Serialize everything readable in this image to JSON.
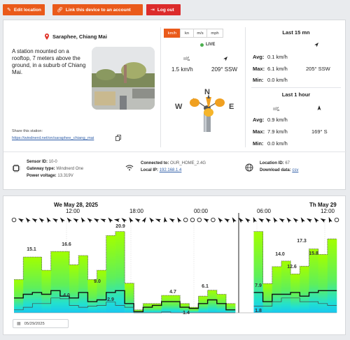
{
  "topbar": {
    "edit_location": "Edit location",
    "link_device": "Link this device to an account",
    "logout": "Log out"
  },
  "station": {
    "name": "Saraphee, Chiang Mai",
    "description": "A station mounted on a rooftop, 7 meters above the ground, in a suburb of Chiang Mai.",
    "share_label": "Share this station:",
    "share_url": "https://windnerd.net/on/saraphee_chiang_mai"
  },
  "units": [
    "km/h",
    "kn",
    "m/s",
    "mph"
  ],
  "units_active": "km/h",
  "live": {
    "label": "LIVE",
    "speed": "1.5 km/h",
    "direction": "209° SSW"
  },
  "compass": {
    "n": "N",
    "w": "W",
    "e": "E"
  },
  "stats": {
    "last15": {
      "title": "Last 15 mn",
      "avg_label": "Avg:",
      "avg": "0.1 km/h",
      "max_label": "Max:",
      "max": "6.1 km/h",
      "max_dir": "205° SSW",
      "min_label": "Min:",
      "min": "0.0 km/h"
    },
    "last1h": {
      "title": "Last 1 hour",
      "avg_label": "Avg:",
      "avg": "0.9 km/h",
      "max_label": "Max:",
      "max": "7.9 km/h",
      "max_dir": "169° S",
      "min_label": "Min:",
      "min": "0.0 km/h"
    }
  },
  "footer": {
    "sensor_id_label": "Sensor ID:",
    "sensor_id": "10-0",
    "gateway_label": "Gateway type:",
    "gateway": "Windnerd One",
    "power_label": "Power voltage:",
    "power": "13.319V",
    "connected_label": "Connected to:",
    "connected": "OUR_HOME_2.4G",
    "local_ip_label": "Local IP:",
    "local_ip": "192.168.1.4",
    "location_id_label": "Location ID:",
    "location_id": "67",
    "download_label": "Download data:",
    "download": "csv"
  },
  "chart_data": {
    "type": "area",
    "date_labels": [
      "We May 28, 2025",
      "Th May 29"
    ],
    "time_labels": [
      "12:00",
      "18:00",
      "00:00",
      "06:00",
      "12:00"
    ],
    "series": [
      {
        "name": "max",
        "values": [
          9.0,
          15.1,
          15.1,
          11.5,
          16.6,
          16.6,
          13.0,
          15.5,
          9.0,
          11.5,
          20.9,
          22.0,
          8.0,
          0.8,
          2.5,
          2.5,
          4.7,
          4.7,
          2.5,
          1.5,
          4.5,
          6.1,
          5.0,
          2.5,
          0.3,
          0.2,
          22.0,
          7.9,
          12.5,
          14.0,
          10.5,
          12.6,
          17.3,
          15.8,
          20.0
        ]
      },
      {
        "name": "avg",
        "values": [
          4.0,
          5.0,
          5.5,
          5.0,
          6.0,
          4.5,
          4.0,
          5.5,
          3.0,
          3.5,
          5.5,
          6.0,
          2.5,
          0.3,
          1.5,
          2.0,
          3.0,
          3.0,
          1.5,
          1.2,
          2.5,
          3.5,
          2.5,
          0.8,
          0.2,
          0.2,
          5.5,
          3.0,
          5.0,
          5.0,
          5.5,
          4.5,
          5.5,
          6.0,
          6.0
        ]
      },
      {
        "name": "min",
        "values": [
          0.8,
          1.5,
          2.5,
          2.5,
          4.0,
          3.8,
          2.0,
          1.5,
          1.8,
          2.0,
          2.9,
          2.0,
          1.5,
          0.0,
          0.0,
          0.0,
          0.2,
          0.0,
          0.0,
          0.0,
          0.0,
          0.0,
          0.0,
          0.0,
          0.0,
          0.0,
          1.8,
          1.8,
          3.0,
          4.0,
          4.0,
          3.0,
          3.0,
          2.5,
          2.0
        ]
      }
    ],
    "data_labels": [
      "15.1",
      "16.6",
      "9.0",
      "20.9",
      "4.0",
      "2.9",
      "4.7",
      "6.1",
      "1.4",
      "7.9",
      "14.0",
      "12.6",
      "17.3",
      "15.8",
      "1.8"
    ],
    "ylim": [
      0,
      24
    ]
  },
  "date_picker": {
    "value": "05/29/2025"
  }
}
